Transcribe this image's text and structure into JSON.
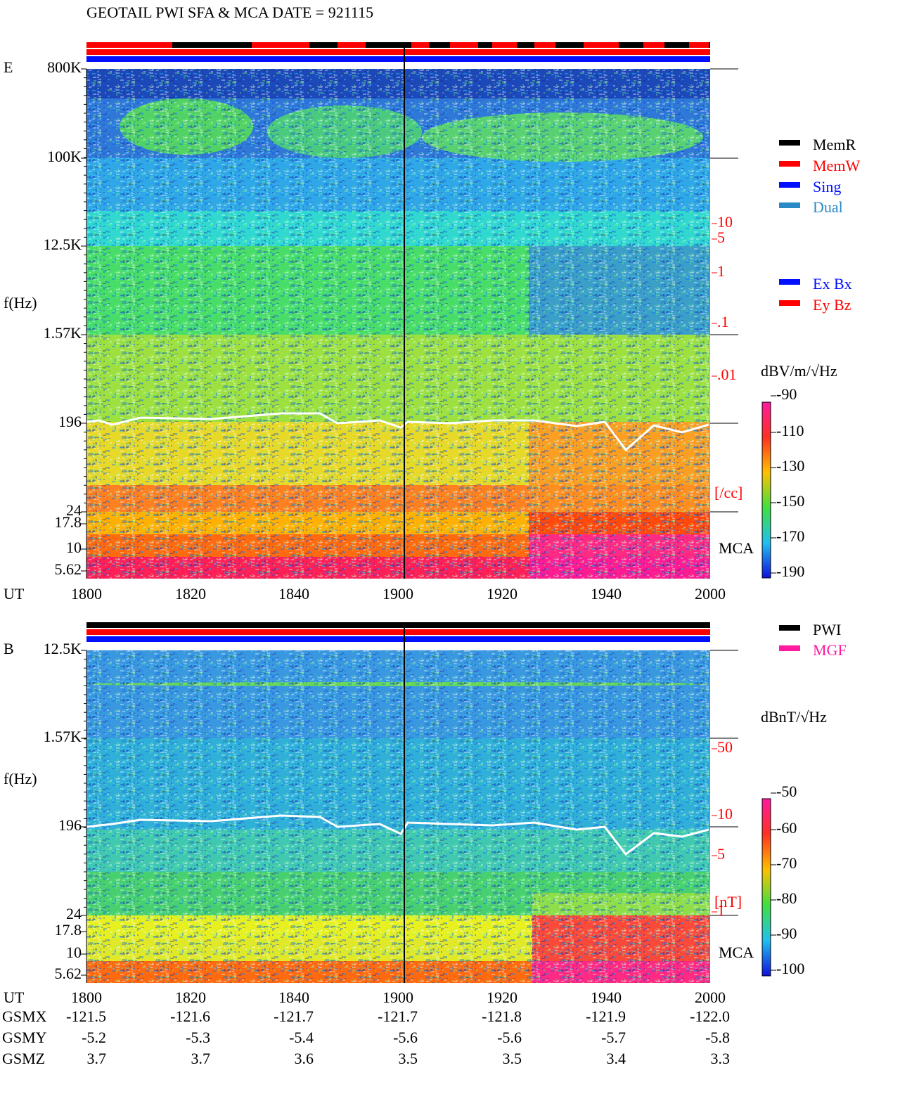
{
  "header": {
    "title": "GEOTAIL  PWI SFA & MCA   DATE = 921115"
  },
  "panels": [
    {
      "label": "E",
      "freq_ticks": [
        "800K",
        "100K",
        "12.5K",
        "1.57K",
        "196",
        "24",
        "17.8",
        "10",
        "5.62"
      ],
      "freq_label": "f(Hz)",
      "density_ticks": [
        "10",
        "5",
        "1",
        ".1",
        ".01"
      ],
      "density_unit": "[/cc]",
      "mca_label": "MCA",
      "time_label": "UT",
      "time_ticks": [
        "1800",
        "1820",
        "1840",
        "1900",
        "1920",
        "1940",
        "2000"
      ],
      "colorbar_unit": "dBV/m/√Hz",
      "colorbar_ticks": [
        "-90",
        "-110",
        "-130",
        "-150",
        "-170",
        "-190"
      ]
    },
    {
      "label": "B",
      "freq_ticks": [
        "12.5K",
        "1.57K",
        "196",
        "24",
        "17.8",
        "10",
        "5.62"
      ],
      "freq_label": "f(Hz)",
      "density_ticks": [
        "50",
        "10",
        "5",
        "1"
      ],
      "density_unit": "[nT]",
      "mca_label": "MCA",
      "time_label": "UT",
      "time_ticks": [
        "1800",
        "1820",
        "1840",
        "1900",
        "1920",
        "1940",
        "2000"
      ],
      "colorbar_unit": "dBnT/√Hz",
      "colorbar_ticks": [
        "-50",
        "-60",
        "-70",
        "-80",
        "-90",
        "-100"
      ]
    }
  ],
  "legend_modes": [
    "MemR",
    "MemW",
    "Sing",
    "Dual"
  ],
  "legend_components": [
    "Ex Bx",
    "Ey Bz"
  ],
  "legend_instruments": [
    "PWI",
    "MGF"
  ],
  "orbit": {
    "rows": [
      {
        "label": "GSMX",
        "values": [
          "-121.5",
          "-121.6",
          "-121.7",
          "-121.7",
          "-121.8",
          "-121.9",
          "-122.0"
        ]
      },
      {
        "label": "GSMY",
        "values": [
          "-5.2",
          "-5.3",
          "-5.4",
          "-5.6",
          "-5.6",
          "-5.7",
          "-5.8"
        ]
      },
      {
        "label": "GSMZ",
        "values": [
          "3.7",
          "3.7",
          "3.6",
          "3.5",
          "3.5",
          "3.4",
          "3.3"
        ]
      }
    ]
  }
}
